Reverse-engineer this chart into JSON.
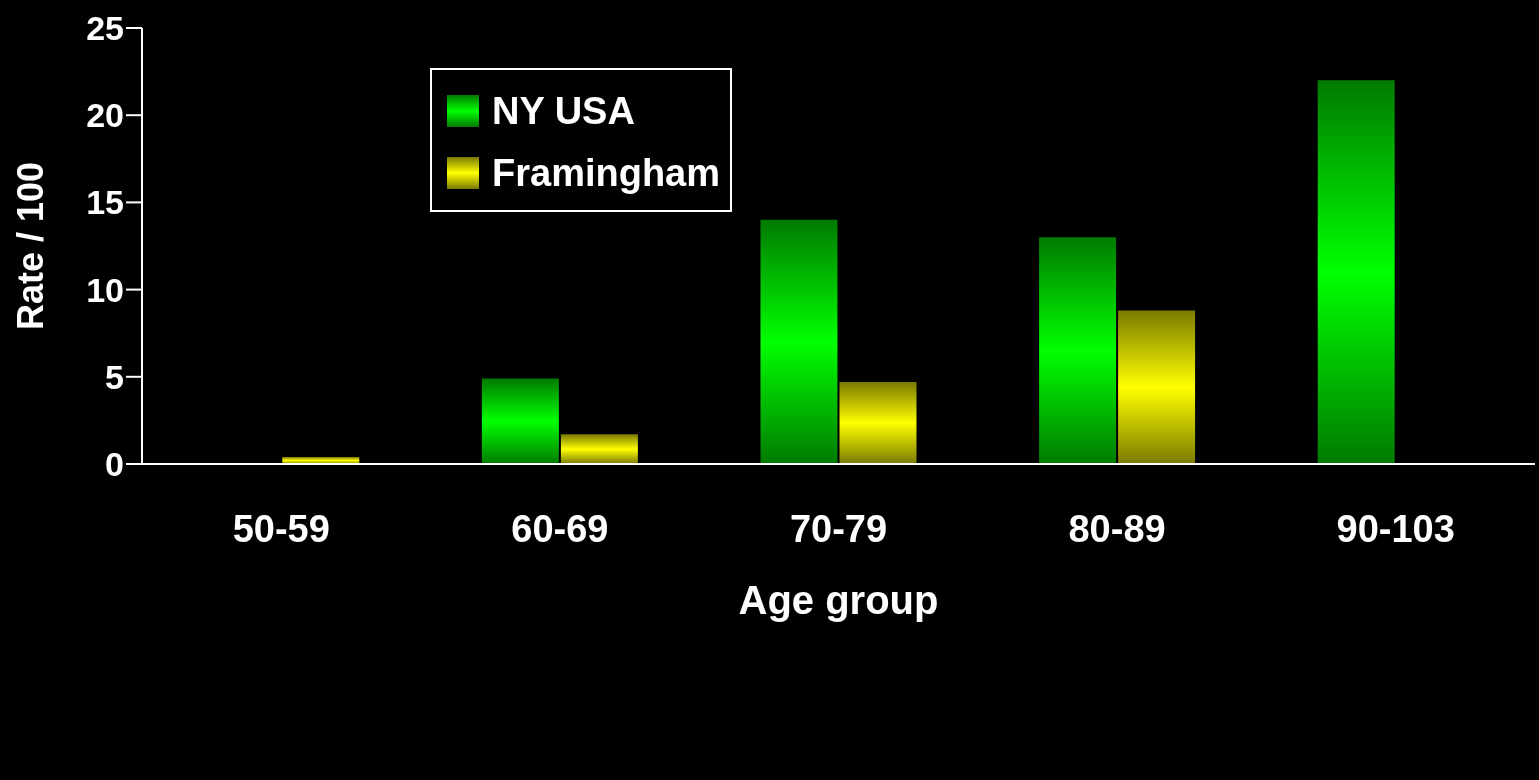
{
  "chart_data": {
    "type": "bar",
    "xlabel": "Age group",
    "ylabel": "Rate / 100",
    "categories": [
      "50-59",
      "60-69",
      "70-79",
      "80-89",
      "90-103"
    ],
    "series": [
      {
        "name": "NY USA",
        "color": "#00ff00",
        "values": [
          null,
          4.9,
          14,
          13,
          22
        ]
      },
      {
        "name": "Framingham",
        "color": "#ffff00",
        "values": [
          0.4,
          1.7,
          4.7,
          8.8,
          null
        ]
      }
    ],
    "ylim": [
      0,
      25
    ],
    "yticks": [
      0,
      5,
      10,
      15,
      20,
      25
    ],
    "grid": false,
    "legend": "top left"
  }
}
